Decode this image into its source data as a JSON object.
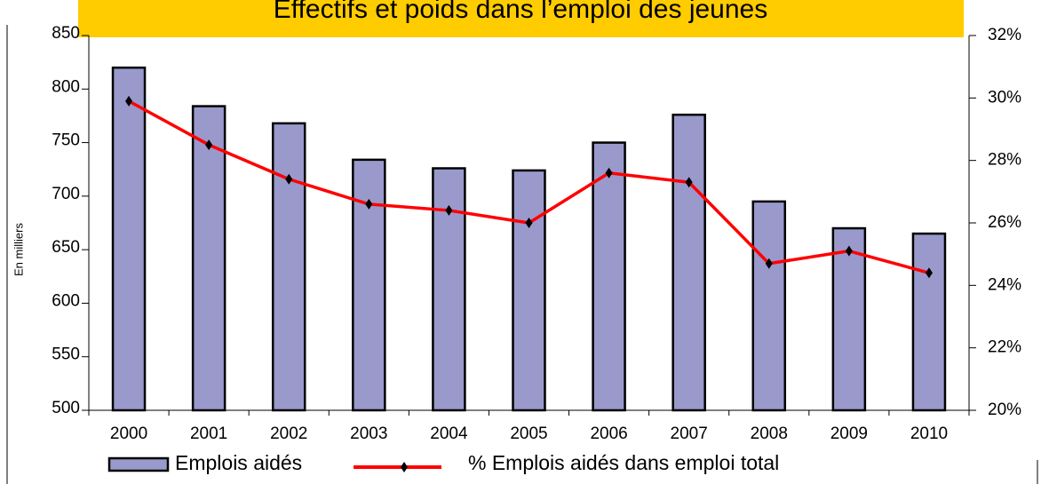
{
  "chart_data": {
    "type": "bar",
    "title": "Effectifs et poids dans l’emploi des jeunes",
    "y_label": "En milliers",
    "categories": [
      "2000",
      "2001",
      "2002",
      "2003",
      "2004",
      "2005",
      "2006",
      "2007",
      "2008",
      "2009",
      "2010"
    ],
    "series": [
      {
        "name": "Emplois aidés",
        "type": "bar",
        "color": "#9999cc",
        "values": [
          820,
          784,
          768,
          734,
          726,
          724,
          750,
          776,
          695,
          670,
          665
        ]
      },
      {
        "name": "% Emplois aidés dans emploi total",
        "type": "line",
        "color": "#ff0000",
        "axis": "y2",
        "values": [
          29.9,
          28.5,
          27.4,
          26.6,
          26.4,
          26.0,
          27.6,
          27.3,
          24.7,
          25.1,
          24.4
        ]
      }
    ],
    "ylim": [
      500,
      850
    ],
    "yticks": [
      500,
      550,
      600,
      650,
      700,
      750,
      800,
      850
    ],
    "y2lim": [
      20,
      32
    ],
    "y2ticks": [
      {
        "value": 20,
        "label": "20%"
      },
      {
        "value": 22,
        "label": "22%"
      },
      {
        "value": 24,
        "label": "24%"
      },
      {
        "value": 26,
        "label": "26%"
      },
      {
        "value": 28,
        "label": "28%"
      },
      {
        "value": 30,
        "label": "30%"
      },
      {
        "value": 32,
        "label": "32%"
      }
    ],
    "legend": "bottom"
  }
}
